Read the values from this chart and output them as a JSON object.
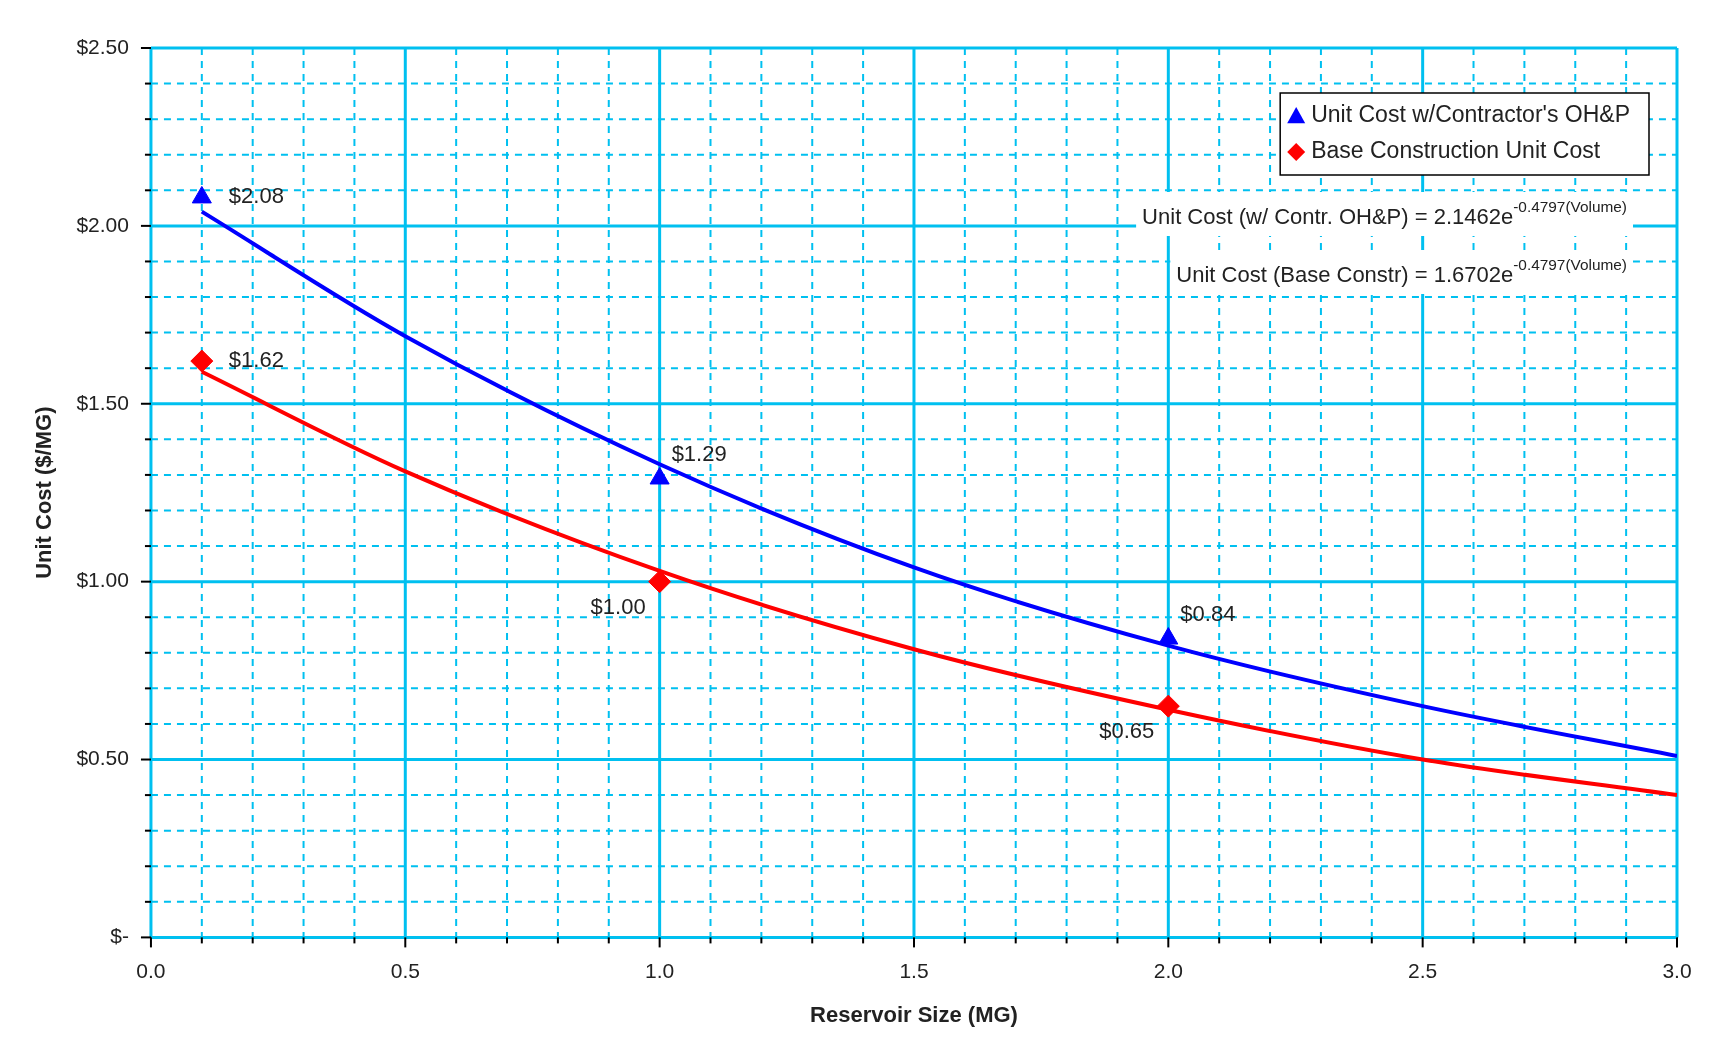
{
  "chart_data": {
    "type": "scatter",
    "xlabel": "Reservoir Size (MG)",
    "ylabel": "Unit Cost ($/MG)",
    "xlim": [
      0,
      3
    ],
    "ylim": [
      0,
      2.5
    ],
    "xticks": [
      {
        "value": 0,
        "label": "0.0"
      },
      {
        "value": 0.1,
        "label": null
      },
      {
        "value": 0.2,
        "label": null
      },
      {
        "value": 0.3,
        "label": null
      },
      {
        "value": 0.4,
        "label": null
      },
      0.5,
      {
        "value": 0.6,
        "label": null
      },
      {
        "value": 0.7,
        "label": null
      },
      {
        "value": 0.8,
        "label": null
      },
      {
        "value": 0.9,
        "label": null
      },
      {
        "value": 1,
        "label": "1.0"
      },
      {
        "value": 1.1,
        "label": null
      },
      {
        "value": 1.2,
        "label": null
      },
      {
        "value": 1.3,
        "label": null
      },
      {
        "value": 1.4,
        "label": null
      },
      1.5,
      {
        "value": 1.6,
        "label": null
      },
      {
        "value": 1.7,
        "label": null
      },
      {
        "value": 1.8,
        "label": null
      },
      {
        "value": 1.9,
        "label": null
      },
      {
        "value": 2,
        "label": "2.0"
      },
      {
        "value": 2.1,
        "label": null
      },
      {
        "value": 2.2,
        "label": null
      },
      {
        "value": 2.3,
        "label": null
      },
      {
        "value": 2.4,
        "label": null
      },
      2.5,
      {
        "value": 2.6,
        "label": null
      },
      {
        "value": 2.7,
        "label": null
      },
      {
        "value": 2.8,
        "label": null
      },
      {
        "value": 2.9,
        "label": null
      },
      {
        "value": 3,
        "label": "3.0"
      }
    ],
    "yticks": [
      {
        "value": 0,
        "label": "$-"
      },
      {
        "value": 0.1,
        "label": null
      },
      {
        "value": 0.2,
        "label": null
      },
      {
        "value": 0.3,
        "label": null
      },
      {
        "value": 0.4,
        "label": null
      },
      {
        "value": 0.5,
        "label": "$0.50"
      },
      {
        "value": 0.6,
        "label": null
      },
      {
        "value": 0.7,
        "label": null
      },
      {
        "value": 0.8,
        "label": null
      },
      {
        "value": 0.9,
        "label": null
      },
      {
        "value": 1,
        "label": "$1.00"
      },
      {
        "value": 1.1,
        "label": null
      },
      {
        "value": 1.2,
        "label": null
      },
      {
        "value": 1.3,
        "label": null
      },
      {
        "value": 1.4,
        "label": null
      },
      {
        "value": 1.5,
        "label": "$1.50"
      },
      {
        "value": 1.6,
        "label": null
      },
      {
        "value": 1.7,
        "label": null
      },
      {
        "value": 1.8,
        "label": null
      },
      {
        "value": 1.9,
        "label": null
      },
      {
        "value": 2,
        "label": "$2.00"
      },
      {
        "value": 2.1,
        "label": null
      },
      {
        "value": 2.2,
        "label": null
      },
      {
        "value": 2.3,
        "label": null
      },
      {
        "value": 2.4,
        "label": null
      },
      {
        "value": 2.5,
        "label": "$2.50"
      }
    ],
    "grid": true,
    "legend": "top right",
    "series": [
      {
        "type": "line",
        "color": "#0000ff",
        "marker": "none",
        "x": [
          0.1,
          0.5,
          1,
          1.5,
          2,
          2.5,
          3
        ],
        "values": [
          2.04,
          1.69,
          1.33,
          1.04,
          0.82,
          0.65,
          0.51
        ]
      },
      {
        "type": "line",
        "color": "#ff0000",
        "marker": "none",
        "x": [
          0.1,
          0.5,
          1,
          1.5,
          2,
          2.5,
          3
        ],
        "values": [
          1.59,
          1.31,
          1.03,
          0.81,
          0.64,
          0.5,
          0.4
        ]
      },
      {
        "name": "Unit Cost w/Contractor's OH&P",
        "color": "#0000ff",
        "marker": "triangle",
        "x": [
          0.1,
          1,
          2
        ],
        "values": [
          2.08,
          1.29,
          0.84
        ],
        "value_labels": [
          "$2.08",
          "$1.29",
          "$0.84"
        ]
      },
      {
        "name": "Base Construction Unit Cost",
        "color": "#ff0000",
        "marker": "diamond",
        "x": [
          0.1,
          1,
          2
        ],
        "values": [
          1.62,
          1.0,
          0.65
        ],
        "value_labels": [
          "$1.62",
          "$1.00",
          "$0.65"
        ]
      }
    ],
    "annotations": [
      "Unit Cost (w/ Contr. OH&P) = 2.1462e$^{-0.4797(Volume)}$",
      "Unit Cost (Base Constr) = 1.6702e$^{-0.4797(Volume)}$"
    ]
  }
}
